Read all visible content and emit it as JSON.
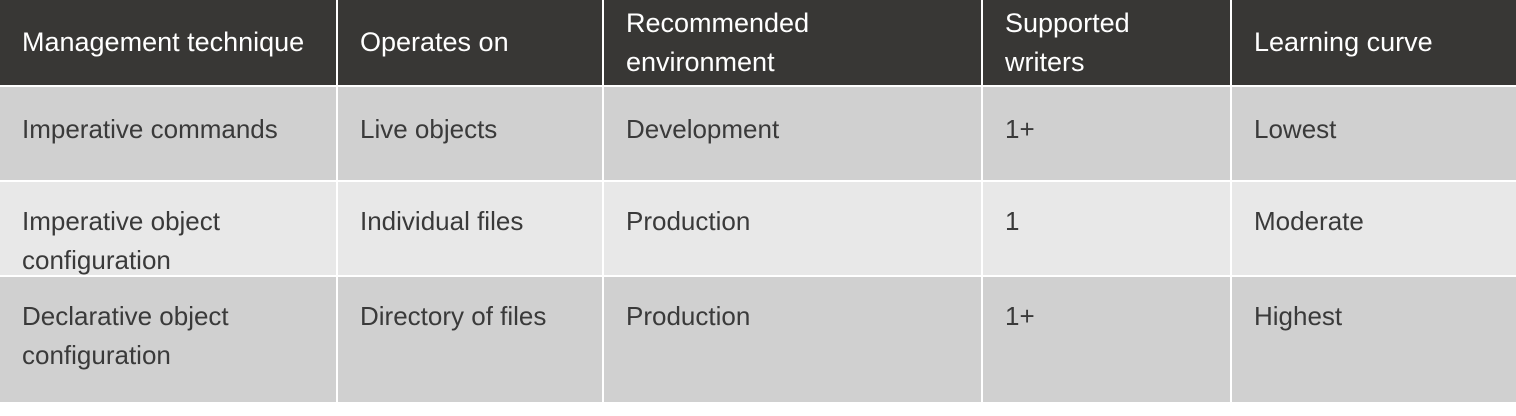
{
  "table": {
    "headers": [
      "Management technique",
      "Operates on",
      "Recommended environment",
      "Supported writers",
      "Learning curve"
    ],
    "rows": [
      {
        "technique": "Imperative commands",
        "operates_on": "Live objects",
        "environment": "Development",
        "writers": "1+",
        "learning_curve": "Lowest"
      },
      {
        "technique": "Imperative object configuration",
        "operates_on": "Individual files",
        "environment": "Production",
        "writers": "1",
        "learning_curve": "Moderate"
      },
      {
        "technique": "Declarative object configuration",
        "operates_on": "Directory of files",
        "environment": "Production",
        "writers": "1+",
        "learning_curve": "Highest"
      }
    ]
  },
  "colors": {
    "header_bg": "#383735",
    "header_text": "#ffffff",
    "row_dark": "#d0d0d0",
    "row_light": "#e8e8e8",
    "body_text": "#3a3a3a"
  }
}
